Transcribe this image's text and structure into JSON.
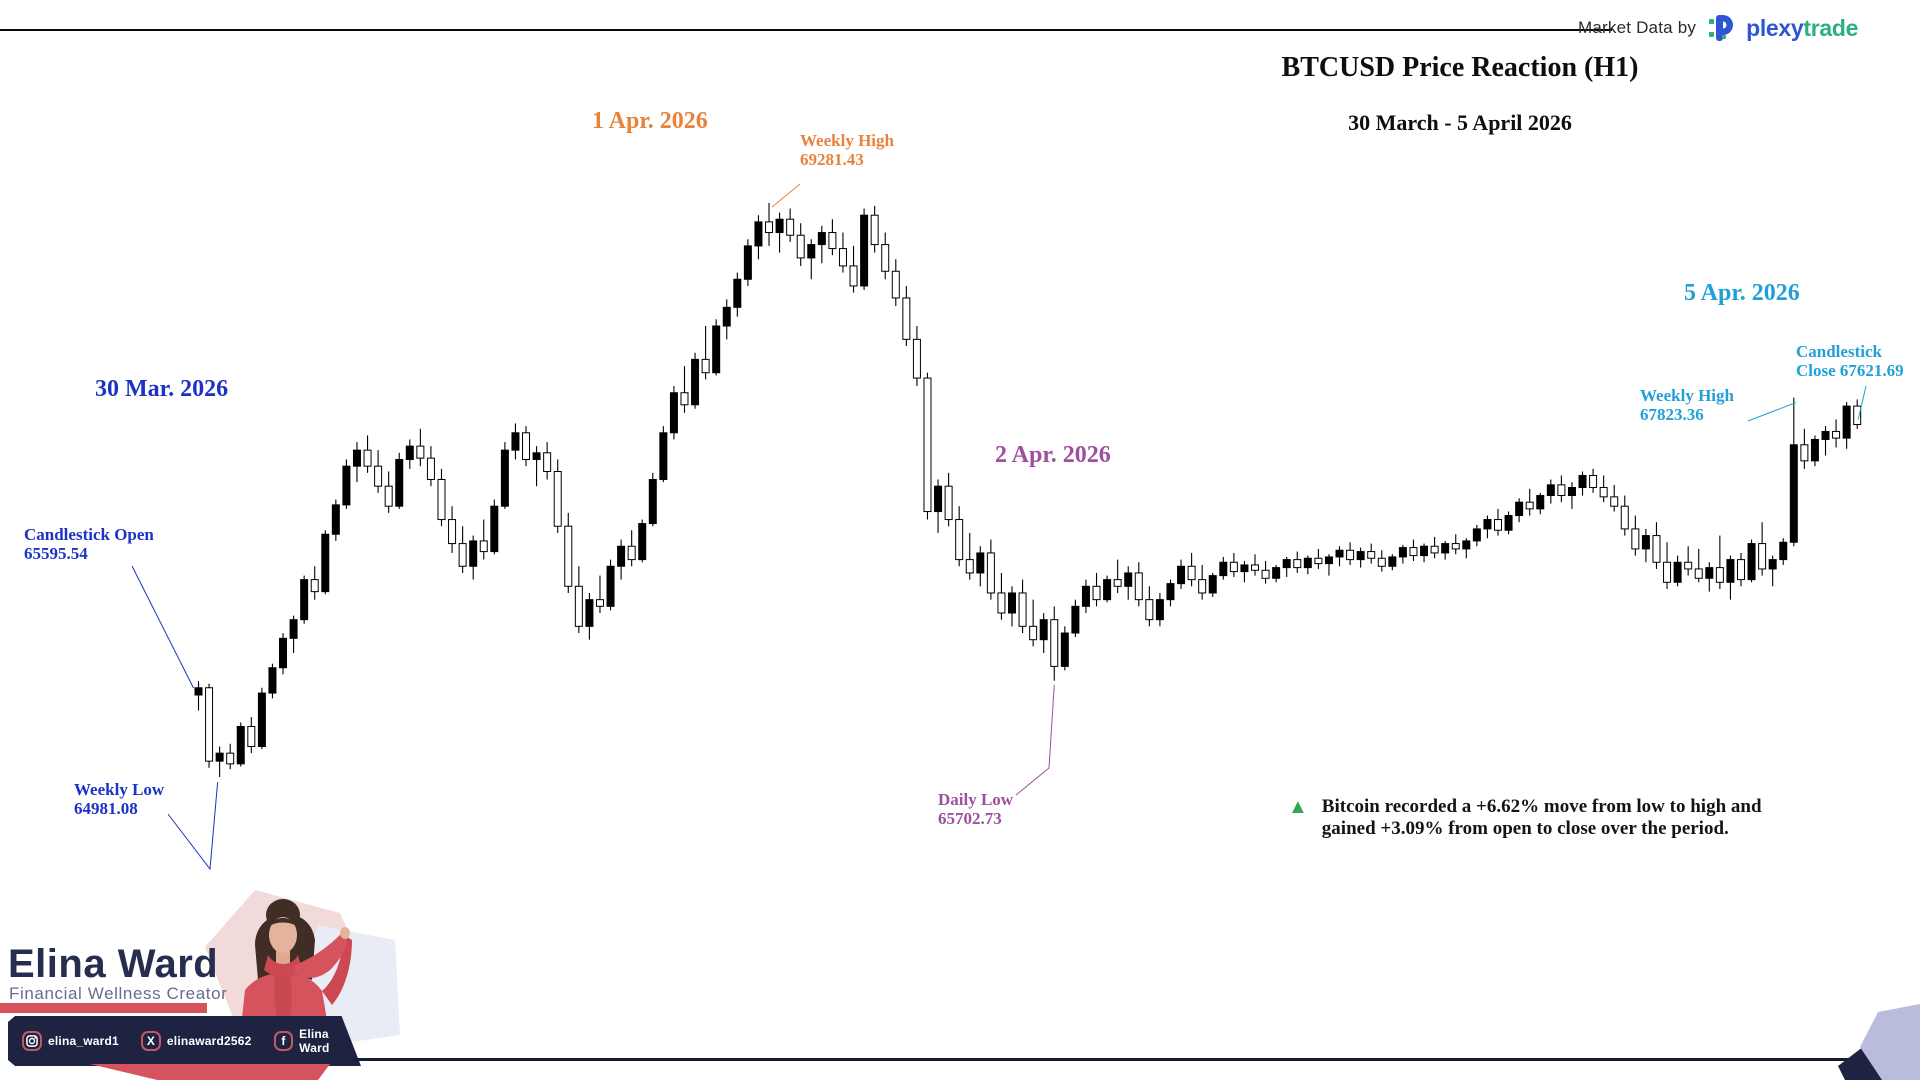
{
  "header": {
    "market_data_label": "Market Data by",
    "logo_plexy": "plexy",
    "logo_trade": "trade"
  },
  "title": {
    "main": "BTCUSD Price Reaction (H1)",
    "subtitle": "30 March - 5 April 2026"
  },
  "date_labels": [
    {
      "id": "d30mar",
      "text": "30 Mar. 2026",
      "color": "#1c33c5"
    },
    {
      "id": "d1apr",
      "text": "1 Apr. 2026",
      "color": "#e8823c"
    },
    {
      "id": "d2apr",
      "text": "2 Apr. 2026",
      "color": "#9d4fa0"
    },
    {
      "id": "d5apr",
      "text": "5 Apr. 2026",
      "color": "#21a0d8"
    }
  ],
  "annotations": [
    {
      "id": "open",
      "lines": [
        "Candlestick Open",
        "65595.54"
      ],
      "color": "#1c33c5",
      "anchor": {
        "candle": 0,
        "point": "open"
      }
    },
    {
      "id": "wlow",
      "lines": [
        "Weekly Low",
        "64981.08"
      ],
      "color": "#1c33c5",
      "anchor": {
        "candle": 2,
        "point": "low"
      }
    },
    {
      "id": "whigh1",
      "lines": [
        "Weekly High",
        "69281.43"
      ],
      "color": "#e8823c",
      "anchor": {
        "candle": 54,
        "point": "high"
      }
    },
    {
      "id": "dlow",
      "lines": [
        "Daily Low",
        "65702.73"
      ],
      "color": "#9d4fa0",
      "anchor": {
        "candle": 81,
        "point": "low"
      }
    },
    {
      "id": "close",
      "lines": [
        "Candlestick",
        "Close 67621.69"
      ],
      "color": "#21a0d8",
      "anchor": {
        "candle": 157,
        "point": "close"
      }
    },
    {
      "id": "whigh2",
      "lines": [
        "Weekly High",
        "67823.36"
      ],
      "color": "#21a0d8",
      "anchor": {
        "candle": 151,
        "point": "high"
      }
    }
  ],
  "summary": {
    "icon": "up-triangle",
    "color": "#2ea74e",
    "lines": [
      "Bitcoin recorded a +6.62% move from low to high and",
      "gained +3.09% from open to close over the period."
    ]
  },
  "branding": {
    "name": "Elina Ward",
    "role": "Financial Wellness Creator",
    "name_color": "#272d4e",
    "accent_red": "#d6525c",
    "bar_color": "#1e2342",
    "corner_lavender": "#b9bddb",
    "socials": [
      {
        "network": "instagram",
        "handle": "elina_ward1"
      },
      {
        "network": "x",
        "handle": "elinaward2562"
      },
      {
        "network": "facebook",
        "handle": "Elina Ward"
      }
    ]
  },
  "chart_data": {
    "type": "candlestick",
    "symbol": "BTCUSD",
    "timeframe": "H1",
    "period": "30 March - 5 April 2026",
    "grid": false,
    "axes_visible": false,
    "style": {
      "bull_fill": "#000000",
      "bear_fill": "#ffffff",
      "stroke": "#000000"
    },
    "ylim": [
      64900,
      69450
    ],
    "key_values": {
      "candlestick_open": 65595.54,
      "weekly_low": 64981.08,
      "weekly_high_1apr": 69281.43,
      "daily_low_2apr": 65702.73,
      "weekly_high_5apr": 67823.36,
      "candlestick_close": 67621.69,
      "low_to_high_move_pct": "+6.62%",
      "open_to_close_gain_pct": "+3.09%"
    },
    "ohlc": [
      [
        65595.54,
        65700,
        65480,
        65650
      ],
      [
        65650,
        65680,
        65050,
        65100
      ],
      [
        65100,
        65210,
        64981.08,
        65160
      ],
      [
        65160,
        65230,
        65040,
        65080
      ],
      [
        65080,
        65390,
        65060,
        65360
      ],
      [
        65360,
        65430,
        65160,
        65210
      ],
      [
        65210,
        65650,
        65190,
        65610
      ],
      [
        65610,
        65830,
        65570,
        65800
      ],
      [
        65800,
        66060,
        65750,
        66020
      ],
      [
        66020,
        66190,
        65910,
        66160
      ],
      [
        66160,
        66490,
        66130,
        66460
      ],
      [
        66460,
        66560,
        66310,
        66370
      ],
      [
        66370,
        66830,
        66350,
        66800
      ],
      [
        66800,
        67060,
        66750,
        67020
      ],
      [
        67020,
        67360,
        66990,
        67310
      ],
      [
        67310,
        67490,
        67190,
        67430
      ],
      [
        67430,
        67540,
        67260,
        67310
      ],
      [
        67310,
        67430,
        67110,
        67160
      ],
      [
        67160,
        67270,
        66960,
        67010
      ],
      [
        67010,
        67410,
        66990,
        67360
      ],
      [
        67360,
        67510,
        67290,
        67460
      ],
      [
        67460,
        67590,
        67310,
        67370
      ],
      [
        67370,
        67460,
        67160,
        67210
      ],
      [
        67210,
        67290,
        66860,
        66910
      ],
      [
        66910,
        67010,
        66660,
        66730
      ],
      [
        66730,
        66860,
        66510,
        66560
      ],
      [
        66560,
        66790,
        66460,
        66750
      ],
      [
        66750,
        66910,
        66610,
        66670
      ],
      [
        66670,
        67060,
        66650,
        67010
      ],
      [
        67010,
        67490,
        66990,
        67430
      ],
      [
        67430,
        67630,
        67360,
        67560
      ],
      [
        67560,
        67610,
        67310,
        67360
      ],
      [
        67360,
        67460,
        67160,
        67410
      ],
      [
        67410,
        67490,
        67210,
        67270
      ],
      [
        67270,
        67360,
        66810,
        66860
      ],
      [
        66860,
        66960,
        66360,
        66410
      ],
      [
        66410,
        66560,
        66060,
        66110
      ],
      [
        66110,
        66360,
        66010,
        66310
      ],
      [
        66310,
        66490,
        66210,
        66260
      ],
      [
        66260,
        66610,
        66230,
        66560
      ],
      [
        66560,
        66760,
        66460,
        66710
      ],
      [
        66710,
        66830,
        66560,
        66610
      ],
      [
        66610,
        66910,
        66590,
        66880
      ],
      [
        66880,
        67260,
        66860,
        67210
      ],
      [
        67210,
        67610,
        67190,
        67560
      ],
      [
        67560,
        67910,
        67510,
        67860
      ],
      [
        67860,
        68060,
        67710,
        67770
      ],
      [
        67770,
        68160,
        67740,
        68110
      ],
      [
        68110,
        68360,
        67960,
        68010
      ],
      [
        68010,
        68410,
        67990,
        68360
      ],
      [
        68360,
        68560,
        68260,
        68500
      ],
      [
        68500,
        68760,
        68430,
        68710
      ],
      [
        68710,
        69010,
        68660,
        68960
      ],
      [
        68960,
        69190,
        68860,
        69140
      ],
      [
        69140,
        69281.43,
        68960,
        69060
      ],
      [
        69060,
        69210,
        68910,
        69160
      ],
      [
        69160,
        69240,
        68990,
        69040
      ],
      [
        69040,
        69130,
        68810,
        68870
      ],
      [
        68870,
        69010,
        68710,
        68970
      ],
      [
        68970,
        69110,
        68830,
        69060
      ],
      [
        69060,
        69160,
        68890,
        68940
      ],
      [
        68940,
        69060,
        68760,
        68810
      ],
      [
        68810,
        68960,
        68610,
        68660
      ],
      [
        68660,
        69240,
        68630,
        69190
      ],
      [
        69190,
        69260,
        68910,
        68970
      ],
      [
        68970,
        69060,
        68710,
        68770
      ],
      [
        68770,
        68860,
        68510,
        68570
      ],
      [
        68570,
        68660,
        68210,
        68260
      ],
      [
        68260,
        68360,
        67910,
        67970
      ],
      [
        67970,
        68010,
        66910,
        66970
      ],
      [
        66970,
        67210,
        66810,
        67160
      ],
      [
        67160,
        67260,
        66860,
        66910
      ],
      [
        66910,
        67010,
        66560,
        66610
      ],
      [
        66610,
        66810,
        66460,
        66510
      ],
      [
        66510,
        66710,
        66410,
        66660
      ],
      [
        66660,
        66760,
        66310,
        66360
      ],
      [
        66360,
        66510,
        66160,
        66210
      ],
      [
        66210,
        66410,
        66110,
        66360
      ],
      [
        66360,
        66460,
        66060,
        66110
      ],
      [
        66110,
        66310,
        65960,
        66010
      ],
      [
        66010,
        66210,
        65910,
        66160
      ],
      [
        66160,
        66260,
        65702.73,
        65810
      ],
      [
        65810,
        66110,
        65780,
        66060
      ],
      [
        66060,
        66310,
        66030,
        66260
      ],
      [
        66260,
        66460,
        66210,
        66410
      ],
      [
        66410,
        66510,
        66260,
        66310
      ],
      [
        66310,
        66490,
        66290,
        66460
      ],
      [
        66460,
        66610,
        66360,
        66410
      ],
      [
        66410,
        66560,
        66310,
        66510
      ],
      [
        66510,
        66590,
        66260,
        66310
      ],
      [
        66310,
        66410,
        66110,
        66160
      ],
      [
        66160,
        66360,
        66110,
        66310
      ],
      [
        66310,
        66460,
        66260,
        66430
      ],
      [
        66430,
        66610,
        66390,
        66560
      ],
      [
        66560,
        66660,
        66410,
        66460
      ],
      [
        66460,
        66570,
        66310,
        66360
      ],
      [
        66360,
        66510,
        66330,
        66490
      ],
      [
        66490,
        66630,
        66460,
        66590
      ],
      [
        66590,
        66660,
        66480,
        66520
      ],
      [
        66520,
        66600,
        66440,
        66570
      ],
      [
        66570,
        66650,
        66490,
        66530
      ],
      [
        66530,
        66600,
        66430,
        66470
      ],
      [
        66470,
        66570,
        66440,
        66550
      ],
      [
        66550,
        66630,
        66480,
        66610
      ],
      [
        66610,
        66670,
        66510,
        66550
      ],
      [
        66550,
        66640,
        66500,
        66620
      ],
      [
        66620,
        66690,
        66540,
        66580
      ],
      [
        66580,
        66650,
        66490,
        66630
      ],
      [
        66630,
        66710,
        66560,
        66680
      ],
      [
        66680,
        66740,
        66570,
        66610
      ],
      [
        66610,
        66700,
        66550,
        66670
      ],
      [
        66670,
        66730,
        66580,
        66620
      ],
      [
        66620,
        66680,
        66520,
        66560
      ],
      [
        66560,
        66650,
        66530,
        66630
      ],
      [
        66630,
        66720,
        66580,
        66700
      ],
      [
        66700,
        66760,
        66600,
        66640
      ],
      [
        66640,
        66730,
        66590,
        66710
      ],
      [
        66710,
        66780,
        66620,
        66660
      ],
      [
        66660,
        66750,
        66610,
        66730
      ],
      [
        66730,
        66800,
        66650,
        66690
      ],
      [
        66690,
        66770,
        66620,
        66750
      ],
      [
        66750,
        66870,
        66710,
        66840
      ],
      [
        66840,
        66940,
        66770,
        66910
      ],
      [
        66910,
        66990,
        66790,
        66830
      ],
      [
        66830,
        66970,
        66800,
        66940
      ],
      [
        66940,
        67070,
        66890,
        67040
      ],
      [
        67040,
        67140,
        66940,
        66990
      ],
      [
        66990,
        67110,
        66950,
        67090
      ],
      [
        67090,
        67210,
        67030,
        67170
      ],
      [
        67170,
        67240,
        67040,
        67090
      ],
      [
        67090,
        67190,
        66990,
        67150
      ],
      [
        67150,
        67270,
        67090,
        67240
      ],
      [
        67240,
        67290,
        67110,
        67150
      ],
      [
        67150,
        67240,
        67040,
        67080
      ],
      [
        67080,
        67170,
        66970,
        67010
      ],
      [
        67010,
        67090,
        66790,
        66840
      ],
      [
        66840,
        66940,
        66640,
        66690
      ],
      [
        66690,
        66840,
        66590,
        66790
      ],
      [
        66790,
        66890,
        66540,
        66590
      ],
      [
        66590,
        66740,
        66390,
        66440
      ],
      [
        66440,
        66640,
        66410,
        66590
      ],
      [
        66590,
        66710,
        66490,
        66540
      ],
      [
        66540,
        66690,
        66440,
        66470
      ],
      [
        66470,
        66590,
        66370,
        66550
      ],
      [
        66550,
        66790,
        66390,
        66440
      ],
      [
        66440,
        66640,
        66310,
        66610
      ],
      [
        66610,
        66660,
        66410,
        66460
      ],
      [
        66460,
        66760,
        66440,
        66730
      ],
      [
        66730,
        66890,
        66490,
        66540
      ],
      [
        66540,
        66640,
        66410,
        66610
      ],
      [
        66610,
        66770,
        66570,
        66740
      ],
      [
        66740,
        67823.36,
        66710,
        67470
      ],
      [
        67470,
        67590,
        67290,
        67350
      ],
      [
        67350,
        67540,
        67310,
        67510
      ],
      [
        67510,
        67610,
        67390,
        67570
      ],
      [
        67570,
        67660,
        67450,
        67520
      ],
      [
        67520,
        67790,
        67440,
        67760
      ],
      [
        67760,
        67810,
        67590,
        67621.69
      ]
    ]
  }
}
